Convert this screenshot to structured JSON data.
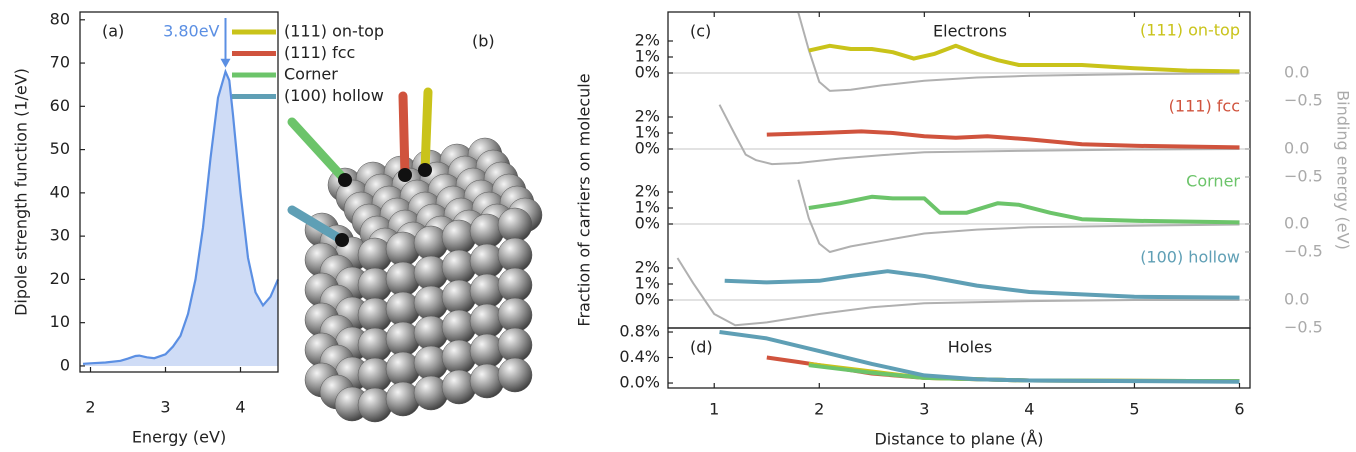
{
  "chart_data": [
    {
      "type": "area",
      "label": "(a)",
      "xlabel": "Energy (eV)",
      "ylabel": "Dipole strength function (1/eV)",
      "annotation": {
        "text": "3.80eV",
        "x": 3.8
      },
      "x": [
        1.9,
        2.0,
        2.2,
        2.4,
        2.5,
        2.6,
        2.65,
        2.75,
        2.85,
        3.0,
        3.1,
        3.2,
        3.3,
        3.4,
        3.5,
        3.6,
        3.7,
        3.8,
        3.85,
        3.9,
        4.0,
        4.1,
        4.2,
        4.3,
        4.4,
        4.5
      ],
      "values": [
        0.5,
        0.6,
        0.8,
        1.2,
        1.7,
        2.3,
        2.4,
        2.0,
        1.8,
        2.7,
        4.5,
        7,
        12,
        20,
        32,
        48,
        62,
        68,
        66,
        58,
        40,
        25,
        17,
        14,
        16,
        20
      ],
      "color": "#5b8fe3",
      "fill": "#cfdcf6",
      "xlim": [
        1.86,
        4.5
      ],
      "ylim": [
        -1.4,
        81.8
      ],
      "xticks": [
        2,
        3,
        4
      ],
      "yticks": [
        0,
        10,
        20,
        30,
        40,
        50,
        60,
        70,
        80
      ]
    },
    {
      "type": "image",
      "label": "(b)",
      "series": [
        {
          "name": "(111) on-top",
          "color": "#c9c31a"
        },
        {
          "name": "(111) fcc",
          "color": "#d0533d"
        },
        {
          "name": "Corner",
          "color": "#6cc46a"
        },
        {
          "name": "(100) hollow",
          "color": "#5f9fb5"
        }
      ]
    },
    {
      "type": "line",
      "label": "(c)",
      "title": "Electrons",
      "ylabel": "Fraction of carriers on molecule",
      "y2label": "Binding energy (eV)",
      "zero_line": true,
      "xlim": [
        0.56,
        6.1
      ],
      "ylim": [
        -1.875,
        3.8125
      ],
      "y2lim": [
        -0.536,
        1.089
      ],
      "yticks": [
        {
          "value": 0,
          "label": "0%"
        },
        {
          "value": 1,
          "label": "1%"
        },
        {
          "value": 2,
          "label": "2%"
        }
      ],
      "y2ticks": [
        {
          "value": 0,
          "label": "0.0"
        },
        {
          "value": -0.5,
          "label": "−0.5"
        }
      ],
      "series": [
        {
          "color": "#b0b0b0",
          "axis": "y2",
          "x": [
            1.8,
            1.9,
            2.0,
            2.1,
            2.3,
            2.6,
            3.0,
            3.5,
            4.0,
            5.0,
            6.0
          ],
          "values": [
            1.08,
            0.41,
            -0.16,
            -0.32,
            -0.3,
            -0.22,
            -0.14,
            -0.08,
            -0.05,
            -0.02,
            -0.01
          ]
        },
        {
          "name": "(111) on-top",
          "color": "#c9c31a",
          "x": [
            1.9,
            2.1,
            2.3,
            2.5,
            2.7,
            2.9,
            3.1,
            3.3,
            3.5,
            3.7,
            3.9,
            4.1,
            4.5,
            5.0,
            5.5,
            6.0
          ],
          "values": [
            1.4,
            1.7,
            1.5,
            1.5,
            1.3,
            0.9,
            1.2,
            1.7,
            1.2,
            0.8,
            0.5,
            0.5,
            0.5,
            0.3,
            0.15,
            0.1
          ]
        }
      ]
    },
    {
      "type": "line",
      "zero_line": true,
      "xlim": [
        0.56,
        6.1
      ],
      "ylim": [
        -1.875,
        3.8125
      ],
      "y2lim": [
        -0.536,
        1.089
      ],
      "yticks": [
        {
          "value": 0,
          "label": "0%"
        },
        {
          "value": 1,
          "label": "1%"
        },
        {
          "value": 2,
          "label": "2%"
        }
      ],
      "y2ticks": [
        {
          "value": 0,
          "label": "0.0"
        },
        {
          "value": -0.5,
          "label": "−0.5"
        }
      ],
      "series": [
        {
          "color": "#b0b0b0",
          "axis": "y2",
          "x": [
            1.05,
            1.2,
            1.3,
            1.4,
            1.55,
            1.8,
            2.2,
            2.6,
            3.0,
            4.0,
            5.0,
            6.0
          ],
          "values": [
            0.79,
            0.25,
            -0.1,
            -0.2,
            -0.27,
            -0.25,
            -0.17,
            -0.11,
            -0.06,
            -0.03,
            -0.01,
            0
          ]
        },
        {
          "name": "(111) fcc",
          "color": "#d0533d",
          "x": [
            1.5,
            2.0,
            2.4,
            2.7,
            3.0,
            3.3,
            3.6,
            4.0,
            4.5,
            5.0,
            6.0
          ],
          "values": [
            0.9,
            1.0,
            1.1,
            1.0,
            0.8,
            0.7,
            0.8,
            0.6,
            0.3,
            0.2,
            0.1
          ]
        }
      ]
    },
    {
      "type": "line",
      "zero_line": true,
      "xlim": [
        0.56,
        6.1
      ],
      "ylim": [
        -1.875,
        3.8125
      ],
      "y2lim": [
        -0.536,
        1.089
      ],
      "yticks": [
        {
          "value": 0,
          "label": "0%"
        },
        {
          "value": 1,
          "label": "1%"
        },
        {
          "value": 2,
          "label": "2%"
        }
      ],
      "y2ticks": [
        {
          "value": 0,
          "label": "0.0"
        },
        {
          "value": -0.5,
          "label": "−0.5"
        }
      ],
      "series": [
        {
          "color": "#b0b0b0",
          "axis": "y2",
          "x": [
            1.8,
            1.9,
            2.0,
            2.1,
            2.3,
            2.6,
            3.0,
            3.5,
            4.0,
            5.0,
            6.0
          ],
          "values": [
            0.79,
            0.1,
            -0.35,
            -0.5,
            -0.4,
            -0.3,
            -0.17,
            -0.1,
            -0.06,
            -0.03,
            -0.01
          ]
        },
        {
          "name": "Corner",
          "color": "#6cc46a",
          "x": [
            1.9,
            2.2,
            2.5,
            2.7,
            3.0,
            3.15,
            3.4,
            3.7,
            3.9,
            4.2,
            4.5,
            5.0,
            6.0
          ],
          "values": [
            1.0,
            1.3,
            1.7,
            1.6,
            1.6,
            0.7,
            0.7,
            1.3,
            1.2,
            0.7,
            0.3,
            0.2,
            0.1
          ]
        }
      ]
    },
    {
      "type": "line",
      "zero_line": true,
      "xlim": [
        0.56,
        6.1
      ],
      "ylim": [
        -1.875,
        3.8125
      ],
      "y2lim": [
        -0.536,
        1.089
      ],
      "yticks": [
        {
          "value": 0,
          "label": "0%"
        },
        {
          "value": 1,
          "label": "1%"
        },
        {
          "value": 2,
          "label": "2%"
        }
      ],
      "y2ticks": [
        {
          "value": 0,
          "label": "0.0"
        },
        {
          "value": -0.5,
          "label": "−0.5"
        }
      ],
      "series": [
        {
          "color": "#b0b0b0",
          "axis": "y2",
          "x": [
            0.65,
            0.8,
            1.0,
            1.2,
            1.5,
            2.0,
            2.5,
            3.0,
            4.0,
            5.0,
            6.0
          ],
          "values": [
            0.75,
            0.3,
            -0.25,
            -0.45,
            -0.4,
            -0.25,
            -0.13,
            -0.06,
            -0.02,
            0,
            0
          ]
        },
        {
          "name": "(100) hollow",
          "color": "#5f9fb5",
          "x": [
            1.1,
            1.5,
            2.0,
            2.3,
            2.65,
            3.0,
            3.5,
            4.0,
            5.0,
            6.0
          ],
          "values": [
            1.2,
            1.1,
            1.2,
            1.5,
            1.8,
            1.5,
            0.9,
            0.5,
            0.2,
            0.15
          ]
        }
      ]
    },
    {
      "type": "line",
      "label": "(d)",
      "title": "Holes",
      "xlabel": "Distance to plane (Å)",
      "xlim": [
        0.56,
        6.1
      ],
      "ylim": [
        -0.078,
        0.863
      ],
      "xticks": [
        1,
        2,
        3,
        4,
        5,
        6
      ],
      "yticks": [
        {
          "value": 0,
          "label": "0.0%"
        },
        {
          "value": 0.4,
          "label": "0.4%"
        },
        {
          "value": 0.8,
          "label": "0.8%"
        }
      ],
      "series": [
        {
          "color": "#d0533d",
          "x": [
            1.5,
            1.8,
            2.0,
            2.5,
            3.0,
            4.0,
            6.0
          ],
          "values": [
            0.4,
            0.33,
            0.28,
            0.15,
            0.08,
            0.04,
            0.03
          ]
        },
        {
          "color": "#c9c31a",
          "x": [
            1.9,
            2.5,
            3.0,
            4.0,
            6.0
          ],
          "values": [
            0.3,
            0.18,
            0.08,
            0.04,
            0.03
          ]
        },
        {
          "color": "#6cc46a",
          "x": [
            1.9,
            2.5,
            3.0,
            4.0,
            6.0
          ],
          "values": [
            0.28,
            0.16,
            0.08,
            0.04,
            0.03
          ]
        },
        {
          "color": "#5f9fb5",
          "x": [
            1.05,
            1.5,
            2.0,
            2.5,
            3.0,
            3.5,
            4.0,
            5.0,
            6.0
          ],
          "values": [
            0.8,
            0.7,
            0.5,
            0.3,
            0.12,
            0.06,
            0.04,
            0.03,
            0.02
          ]
        }
      ]
    }
  ]
}
